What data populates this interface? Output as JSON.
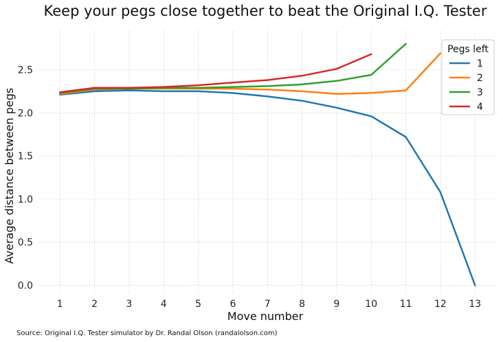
{
  "chart_data": {
    "type": "line",
    "title": "Keep your pegs close together to beat the Original I.Q. Tester",
    "xlabel": "Move number",
    "ylabel": "Average distance between pegs",
    "x_ticks": [
      1,
      2,
      3,
      4,
      5,
      6,
      7,
      8,
      9,
      10,
      11,
      12,
      13
    ],
    "y_ticks": [
      "0.0",
      "0.5",
      "1.0",
      "1.5",
      "2.0",
      "2.5"
    ],
    "xlim": [
      0.4,
      13.65
    ],
    "ylim": [
      -0.1,
      2.95
    ],
    "grid": true,
    "legend_title": "Pegs left",
    "legend_position": "top-right",
    "series": [
      {
        "name": "1",
        "color": "#1f77b4",
        "x": [
          1,
          2,
          3,
          4,
          5,
          6,
          7,
          8,
          9,
          10,
          11,
          12,
          13
        ],
        "y": [
          2.21,
          2.25,
          2.26,
          2.25,
          2.25,
          2.23,
          2.19,
          2.14,
          2.06,
          1.96,
          1.72,
          1.08,
          0.0
        ]
      },
      {
        "name": "2",
        "color": "#ff7f0e",
        "x": [
          1,
          2,
          3,
          4,
          5,
          6,
          7,
          8,
          9,
          10,
          11,
          12
        ],
        "y": [
          2.22,
          2.27,
          2.28,
          2.28,
          2.28,
          2.28,
          2.27,
          2.25,
          2.22,
          2.23,
          2.26,
          2.69
        ]
      },
      {
        "name": "3",
        "color": "#2ca02c",
        "x": [
          1,
          2,
          3,
          4,
          5,
          6,
          7,
          8,
          9,
          10,
          11
        ],
        "y": [
          2.23,
          2.28,
          2.28,
          2.29,
          2.29,
          2.3,
          2.31,
          2.33,
          2.37,
          2.44,
          2.8
        ]
      },
      {
        "name": "4",
        "color": "#d62728",
        "x": [
          1,
          2,
          3,
          4,
          5,
          6,
          7,
          8,
          9,
          10
        ],
        "y": [
          2.24,
          2.29,
          2.29,
          2.3,
          2.32,
          2.35,
          2.38,
          2.43,
          2.51,
          2.68
        ]
      }
    ]
  },
  "source": "Source: Original I.Q. Tester simulator by Dr. Randal Olson (randalolson.com)"
}
